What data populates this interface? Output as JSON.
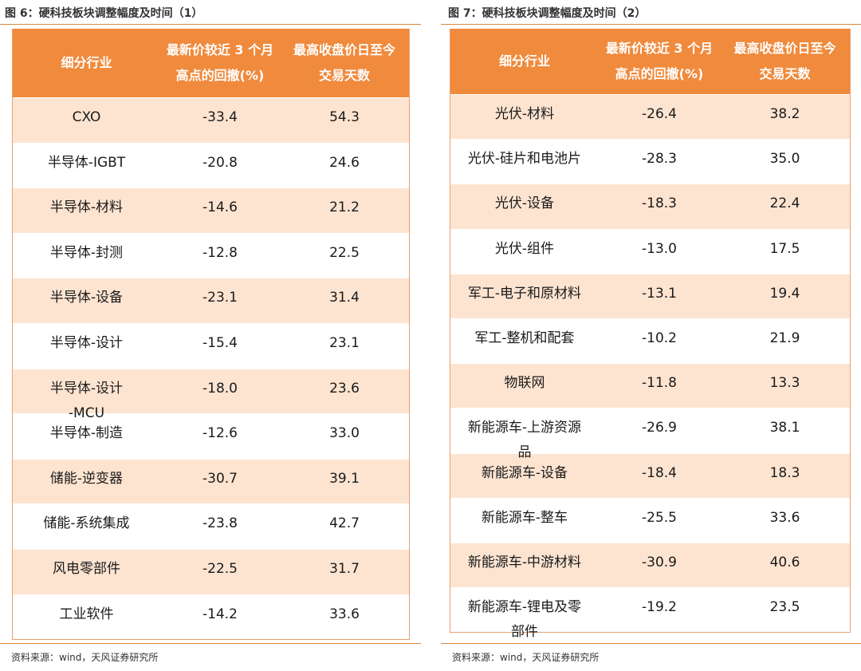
{
  "figure6": {
    "title": "图 6：硬科技板块调整幅度及时间（1）",
    "headers": {
      "col1": "细分行业",
      "col2_line1": "最新价较近 3 个月",
      "col2_line2": "高点的回撤(%)",
      "col3_line1": "最高收盘价日至今",
      "col3_line2": "交易天数"
    },
    "rows": [
      {
        "name": "CXO",
        "drawdown": "-33.4",
        "days": "54.3"
      },
      {
        "name": "半导体-IGBT",
        "drawdown": "-20.8",
        "days": "24.6"
      },
      {
        "name": "半导体-材料",
        "drawdown": "-14.6",
        "days": "21.2"
      },
      {
        "name": "半导体-封测",
        "drawdown": "-12.8",
        "days": "22.5"
      },
      {
        "name": "半导体-设备",
        "drawdown": "-23.1",
        "days": "31.4"
      },
      {
        "name": "半导体-设计",
        "drawdown": "-15.4",
        "days": "23.1"
      },
      {
        "name": "半导体-设计\n-MCU",
        "drawdown": "-18.0",
        "days": "23.6"
      },
      {
        "name": "半导体-制造",
        "drawdown": "-12.6",
        "days": "33.0"
      },
      {
        "name": "储能-逆变器",
        "drawdown": "-30.7",
        "days": "39.1"
      },
      {
        "name": "储能-系统集成",
        "drawdown": "-23.8",
        "days": "42.7"
      },
      {
        "name": "风电零部件",
        "drawdown": "-22.5",
        "days": "31.7"
      },
      {
        "name": "工业软件",
        "drawdown": "-14.2",
        "days": "33.6"
      }
    ],
    "source": "资料来源：wind，天风证券研究所"
  },
  "figure7": {
    "title": "图 7：硬科技板块调整幅度及时间（2）",
    "headers": {
      "col1": "细分行业",
      "col2_line1": "最新价较近 3 个月",
      "col2_line2": "高点的回撤(%)",
      "col3_line1": "最高收盘价日至今",
      "col3_line2": "交易天数"
    },
    "rows": [
      {
        "name": "光伏-材料",
        "drawdown": "-26.4",
        "days": "38.2"
      },
      {
        "name": "光伏-硅片和电池片",
        "drawdown": "-28.3",
        "days": "35.0"
      },
      {
        "name": "光伏-设备",
        "drawdown": "-18.3",
        "days": "22.4"
      },
      {
        "name": "光伏-组件",
        "drawdown": "-13.0",
        "days": "17.5"
      },
      {
        "name": "军工-电子和原材料",
        "drawdown": "-13.1",
        "days": "19.4"
      },
      {
        "name": "军工-整机和配套",
        "drawdown": "-10.2",
        "days": "21.9"
      },
      {
        "name": "物联网",
        "drawdown": "-11.8",
        "days": "13.3"
      },
      {
        "name": "新能源车-上游资源\n品",
        "drawdown": "-26.9",
        "days": "38.1"
      },
      {
        "name": "新能源车-设备",
        "drawdown": "-18.4",
        "days": "18.3"
      },
      {
        "name": "新能源车-整车",
        "drawdown": "-25.5",
        "days": "33.6"
      },
      {
        "name": "新能源车-中游材料",
        "drawdown": "-30.9",
        "days": "40.6"
      },
      {
        "name": "新能源车-锂电及零\n部件",
        "drawdown": "-19.2",
        "days": "23.5"
      }
    ],
    "source": "资料来源：wind，天风证券研究所"
  }
}
